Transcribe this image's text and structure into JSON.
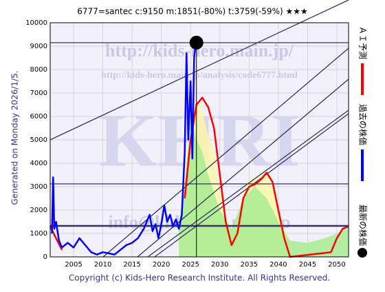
{
  "chart_data": {
    "type": "line",
    "title": "6777=santec    c:9150   m:1851(-80%)   t:3759(-59%)   ★★★",
    "footer": "Copyright (c) Kids-Hero Research Institute. All Rights Reserved.",
    "generated": "Generated on Monday 2026/1/5.",
    "watermarks": [
      "http://kids-hero.main.jp/",
      "http://kids-hero.main.jp/analysis/code6777.html",
      "KHRI",
      "info@kids-hero.main.jp"
    ],
    "xlim": [
      2001,
      2052
    ],
    "ylim": [
      0,
      10000
    ],
    "xticks": [
      2005,
      2010,
      2015,
      2020,
      2025,
      2030,
      2035,
      2040,
      2045,
      2050
    ],
    "yticks": [
      0,
      1000,
      2000,
      3000,
      4000,
      5000,
      6000,
      7000,
      8000,
      9000,
      10000
    ],
    "grid": true,
    "areas": [
      {
        "color": "#fbf7a8",
        "x": [
          2023,
          2024,
          2025,
          2026,
          2027,
          2028,
          2029,
          2030,
          2031,
          2032,
          2033,
          2034,
          2035,
          2036,
          2037,
          2038,
          2039,
          2040,
          2041,
          2042
        ],
        "values": [
          1000,
          3000,
          5500,
          6800,
          6200,
          5200,
          4500,
          2800,
          1500,
          900,
          1500,
          2800,
          3300,
          3400,
          3500,
          3600,
          3000,
          2000,
          1200,
          600
        ]
      },
      {
        "color": "#a8ec90",
        "x": [
          2023,
          2024,
          2025,
          2026,
          2027,
          2028,
          2030,
          2032,
          2034,
          2036,
          2038,
          2040,
          2042,
          2045,
          2048,
          2052
        ],
        "values": [
          1500,
          3000,
          6000,
          5000,
          4500,
          3500,
          2000,
          1200,
          2500,
          3000,
          2500,
          1500,
          700,
          600,
          800,
          1200
        ]
      }
    ],
    "series": [
      {
        "name": "ＡＩ予測",
        "color": "#ff0000",
        "x": [
          2001,
          2002,
          2003,
          2023,
          2024,
          2025,
          2026,
          2027,
          2028,
          2029,
          2030,
          2031,
          2032,
          2033,
          2034,
          2035,
          2036,
          2037,
          2038,
          2039,
          2040,
          2041,
          2042,
          2049,
          2050,
          2051,
          2052
        ],
        "values": [
          1300,
          800,
          300,
          null,
          2500,
          5000,
          6500,
          6800,
          6400,
          5500,
          3500,
          1500,
          500,
          1000,
          2500,
          3000,
          3100,
          3300,
          3600,
          3200,
          2000,
          800,
          0,
          200,
          800,
          1200,
          1300
        ]
      },
      {
        "name": "過去の株価",
        "color": "#0000ff",
        "x": [
          2001.3,
          2001.5,
          2001.7,
          2002,
          2002.5,
          2003,
          2004,
          2005,
          2006,
          2007,
          2008,
          2009,
          2010,
          2011,
          2012,
          2013,
          2014,
          2015,
          2016,
          2017,
          2018,
          2018.5,
          2019,
          2019.5,
          2020,
          2020.5,
          2021,
          2021.5,
          2022,
          2022.5,
          2023,
          2023.5,
          2024,
          2024.3,
          2024.6,
          2025,
          2025.3,
          2025.6,
          2025.9
        ],
        "values": [
          1000,
          3400,
          1200,
          1500,
          700,
          400,
          600,
          400,
          800,
          500,
          200,
          100,
          200,
          150,
          100,
          300,
          500,
          600,
          800,
          1200,
          1800,
          1100,
          1400,
          800,
          1400,
          2200,
          1500,
          1800,
          1300,
          1600,
          1200,
          1800,
          4500,
          8700,
          5000,
          7500,
          4200,
          8500,
          9150
        ]
      }
    ],
    "latest": {
      "name": "最新の株価",
      "x": 2026,
      "value": 9150
    }
  }
}
